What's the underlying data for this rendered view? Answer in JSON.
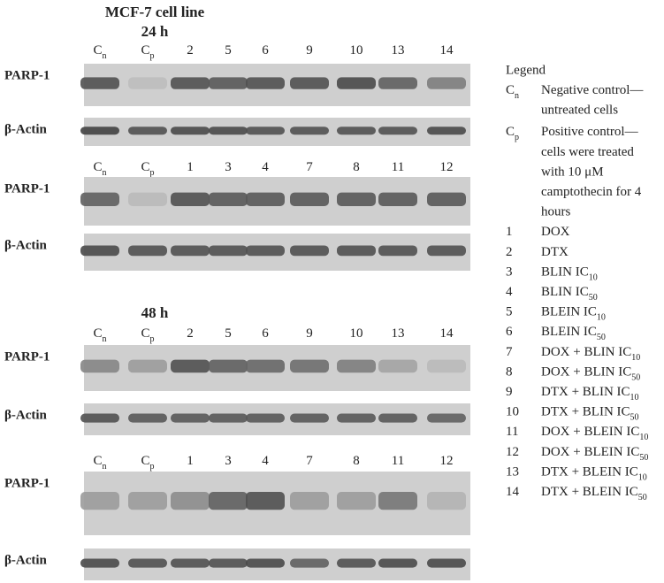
{
  "title": "MCF-7 cell line",
  "sections": [
    {
      "label": "24 h",
      "panels": [
        {
          "lanes": [
            {
              "text": "C",
              "sub": "n"
            },
            {
              "text": "C",
              "sub": "p"
            },
            {
              "text": "2"
            },
            {
              "text": "5"
            },
            {
              "text": "6"
            },
            {
              "text": "9"
            },
            {
              "text": "10"
            },
            {
              "text": "13"
            },
            {
              "text": "14"
            }
          ],
          "rows": [
            "PARP-1",
            "β-Actin"
          ]
        },
        {
          "lanes": [
            {
              "text": "C",
              "sub": "n"
            },
            {
              "text": "C",
              "sub": "p"
            },
            {
              "text": "1"
            },
            {
              "text": "3"
            },
            {
              "text": "4"
            },
            {
              "text": "7"
            },
            {
              "text": "8"
            },
            {
              "text": "11"
            },
            {
              "text": "12"
            }
          ],
          "rows": [
            "PARP-1",
            "β-Actin"
          ]
        }
      ]
    },
    {
      "label": "48 h",
      "panels": [
        {
          "lanes": [
            {
              "text": "C",
              "sub": "n"
            },
            {
              "text": "C",
              "sub": "p"
            },
            {
              "text": "2"
            },
            {
              "text": "5"
            },
            {
              "text": "6"
            },
            {
              "text": "9"
            },
            {
              "text": "10"
            },
            {
              "text": "13"
            },
            {
              "text": "14"
            }
          ],
          "rows": [
            "PARP-1",
            "β-Actin"
          ]
        },
        {
          "lanes": [
            {
              "text": "C",
              "sub": "n"
            },
            {
              "text": "C",
              "sub": "p"
            },
            {
              "text": "1"
            },
            {
              "text": "3"
            },
            {
              "text": "4"
            },
            {
              "text": "7"
            },
            {
              "text": "8"
            },
            {
              "text": "11"
            },
            {
              "text": "12"
            }
          ],
          "rows": [
            "PARP-1",
            "β-Actin"
          ]
        }
      ]
    }
  ],
  "legend": {
    "title": "Legend",
    "items": [
      {
        "key": {
          "text": "C",
          "sub": "n"
        },
        "lines": [
          {
            "text": "Negative control—"
          },
          {
            "text": "untreated cells"
          }
        ]
      },
      {
        "key": {
          "text": "C",
          "sub": "p"
        },
        "lines": [
          {
            "text": "Positive control—"
          },
          {
            "text": "cells were treated"
          },
          {
            "text": "with 10 μM"
          },
          {
            "text": "camptothecin for 4"
          },
          {
            "text": "hours"
          }
        ]
      },
      {
        "key": {
          "text": "1"
        },
        "lines": [
          {
            "text": "DOX"
          }
        ]
      },
      {
        "key": {
          "text": "2"
        },
        "lines": [
          {
            "text": "DTX"
          }
        ]
      },
      {
        "key": {
          "text": "3"
        },
        "lines": [
          {
            "text": "BLIN IC",
            "sub": "10"
          }
        ]
      },
      {
        "key": {
          "text": "4"
        },
        "lines": [
          {
            "text": "BLIN IC",
            "sub": "50"
          }
        ]
      },
      {
        "key": {
          "text": "5"
        },
        "lines": [
          {
            "text": "BLEIN IC",
            "sub": "10"
          }
        ]
      },
      {
        "key": {
          "text": "6"
        },
        "lines": [
          {
            "text": "BLEIN IC",
            "sub": "50"
          }
        ]
      },
      {
        "key": {
          "text": "7"
        },
        "lines": [
          {
            "text": "DOX + BLIN IC",
            "sub": "10"
          }
        ]
      },
      {
        "key": {
          "text": "8"
        },
        "lines": [
          {
            "text": "DOX + BLIN IC",
            "sub": "50"
          }
        ]
      },
      {
        "key": {
          "text": "9"
        },
        "lines": [
          {
            "text": "DTX + BLIN IC",
            "sub": "10"
          }
        ]
      },
      {
        "key": {
          "text": "10"
        },
        "lines": [
          {
            "text": "DTX + BLIN IC",
            "sub": "50"
          }
        ]
      },
      {
        "key": {
          "text": "11"
        },
        "lines": [
          {
            "text": "DOX + BLEIN IC",
            "sub": "10"
          }
        ]
      },
      {
        "key": {
          "text": "12"
        },
        "lines": [
          {
            "text": "DOX + BLEIN IC",
            "sub": "50"
          }
        ]
      },
      {
        "key": {
          "text": "13"
        },
        "lines": [
          {
            "text": "DTX + BLEIN IC",
            "sub": "10"
          }
        ]
      },
      {
        "key": {
          "text": "14"
        },
        "lines": [
          {
            "text": "DTX + BLEIN IC",
            "sub": "50"
          }
        ]
      }
    ]
  }
}
